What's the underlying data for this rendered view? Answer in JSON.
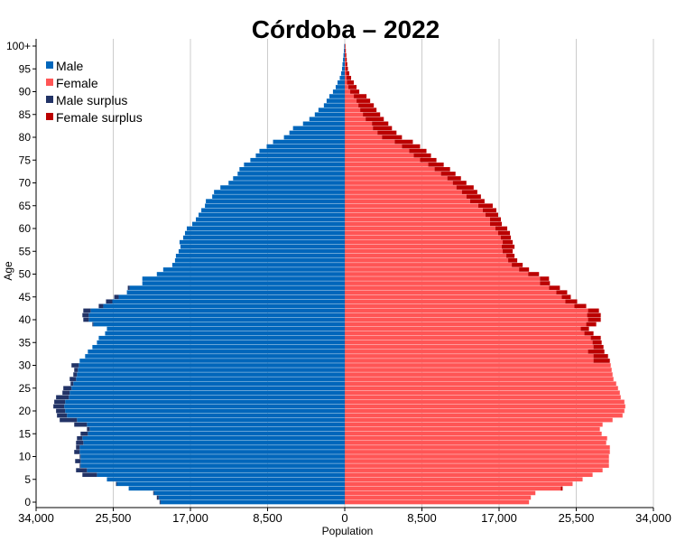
{
  "chart_data": {
    "type": "bar",
    "orientation": "horizontal",
    "title": "Córdoba  –  2022",
    "xlabel": "Population",
    "ylabel": "Age",
    "xlim": [
      -34000,
      34000
    ],
    "x_ticks": [
      -34000,
      -25500,
      -17000,
      -8500,
      0,
      8500,
      17000,
      25500,
      34000
    ],
    "x_tick_labels": [
      "34,000",
      "25,500",
      "17,000",
      "8,500",
      "0",
      "8,500",
      "17,000",
      "25,500",
      "34,000"
    ],
    "ylim": [
      0,
      100
    ],
    "y_ticks": [
      0,
      5,
      10,
      15,
      20,
      25,
      30,
      35,
      40,
      45,
      50,
      55,
      60,
      65,
      70,
      75,
      80,
      85,
      90,
      95,
      100
    ],
    "y_tick_labels": [
      "0",
      "5",
      "10",
      "15",
      "20",
      "25",
      "30",
      "35",
      "40",
      "45",
      "50",
      "55",
      "60",
      "65",
      "70",
      "75",
      "80",
      "85",
      "90",
      "95",
      "100+"
    ],
    "grid": "vertical",
    "legend_position": "top-left",
    "ages": [
      0,
      1,
      2,
      3,
      4,
      5,
      6,
      7,
      8,
      9,
      10,
      11,
      12,
      13,
      14,
      15,
      16,
      17,
      18,
      19,
      20,
      21,
      22,
      23,
      24,
      25,
      26,
      27,
      28,
      29,
      30,
      31,
      32,
      33,
      34,
      35,
      36,
      37,
      38,
      39,
      40,
      41,
      42,
      43,
      44,
      45,
      46,
      47,
      48,
      49,
      50,
      51,
      52,
      53,
      54,
      55,
      56,
      57,
      58,
      59,
      60,
      61,
      62,
      63,
      64,
      65,
      66,
      67,
      68,
      69,
      70,
      71,
      72,
      73,
      74,
      75,
      76,
      77,
      78,
      79,
      80,
      81,
      82,
      83,
      84,
      85,
      86,
      87,
      88,
      89,
      90,
      91,
      92,
      93,
      94,
      95,
      96,
      97,
      98,
      99,
      100
    ],
    "series": [
      {
        "name": "Male",
        "values": [
          20400,
          20700,
          21100,
          23800,
          25200,
          26200,
          28900,
          29600,
          29200,
          29700,
          29200,
          29800,
          29600,
          29600,
          29500,
          29100,
          28400,
          29800,
          31400,
          31700,
          31800,
          32100,
          32000,
          31800,
          31100,
          31000,
          30200,
          30300,
          29900,
          29800,
          30100,
          29200,
          28600,
          28300,
          27800,
          27300,
          27100,
          26400,
          26200,
          27800,
          28800,
          28900,
          28800,
          27100,
          26300,
          25400,
          24000,
          23900,
          22300,
          22300,
          20700,
          20000,
          19000,
          18700,
          18600,
          18300,
          18100,
          18200,
          17800,
          17600,
          17400,
          16800,
          16400,
          16100,
          15800,
          15400,
          15300,
          14600,
          14400,
          13700,
          12800,
          12300,
          11800,
          11600,
          11100,
          10400,
          9800,
          9400,
          8600,
          7900,
          6700,
          6100,
          5700,
          4600,
          3900,
          3300,
          2900,
          2300,
          2000,
          1700,
          1300,
          1000,
          800,
          550,
          400,
          300,
          250,
          190,
          140,
          90,
          60
        ]
      },
      {
        "name": "Female",
        "values": [
          20300,
          20500,
          21000,
          24000,
          25100,
          26200,
          27300,
          28400,
          29100,
          29100,
          29100,
          29200,
          29200,
          28800,
          28900,
          28300,
          28100,
          28400,
          29500,
          30600,
          30800,
          30900,
          30800,
          30400,
          30300,
          30100,
          29900,
          29600,
          29500,
          29400,
          29300,
          29200,
          29000,
          28600,
          28500,
          28300,
          28200,
          27400,
          26900,
          27700,
          28200,
          28200,
          28000,
          26600,
          25600,
          24900,
          24500,
          23700,
          22600,
          22500,
          21400,
          20300,
          19600,
          19000,
          18700,
          18500,
          18700,
          18500,
          18300,
          18200,
          17900,
          17300,
          17200,
          16900,
          16700,
          16300,
          15400,
          15000,
          14600,
          14200,
          13400,
          12800,
          12200,
          11600,
          10900,
          10100,
          9500,
          9000,
          8300,
          7500,
          6300,
          5700,
          5200,
          4800,
          4300,
          3900,
          3500,
          3200,
          2800,
          2400,
          1600,
          1300,
          1000,
          700,
          500,
          350,
          280,
          220,
          170,
          120,
          80
        ]
      },
      {
        "name": "Male surplus",
        "values": [
          100,
          200,
          100,
          0,
          100,
          0,
          1600,
          1200,
          100,
          600,
          100,
          600,
          400,
          800,
          600,
          800,
          300,
          1400,
          1900,
          1100,
          1000,
          1200,
          1200,
          1400,
          800,
          900,
          300,
          700,
          400,
          400,
          800,
          0,
          0,
          0,
          0,
          0,
          0,
          0,
          0,
          100,
          600,
          700,
          800,
          500,
          700,
          500,
          0,
          200,
          0,
          0,
          0,
          0,
          0,
          0,
          0,
          0,
          0,
          0,
          0,
          0,
          0,
          0,
          0,
          0,
          0,
          0,
          0,
          0,
          0,
          0,
          0,
          0,
          0,
          0,
          0,
          0,
          0,
          0,
          0,
          0,
          0,
          0,
          0,
          0,
          0,
          0,
          0,
          0,
          0,
          0,
          0,
          0,
          0,
          0,
          0,
          0,
          0,
          0,
          0,
          0,
          0
        ]
      },
      {
        "name": "Female surplus",
        "values": [
          0,
          0,
          0,
          200,
          0,
          0,
          0,
          0,
          0,
          0,
          0,
          0,
          0,
          0,
          0,
          0,
          0,
          0,
          0,
          0,
          0,
          0,
          0,
          0,
          0,
          0,
          0,
          0,
          0,
          0,
          0,
          1800,
          1600,
          1800,
          1100,
          1000,
          1100,
          1000,
          900,
          1100,
          1400,
          1500,
          1200,
          1300,
          1300,
          1000,
          1200,
          1200,
          1100,
          1000,
          1200,
          1100,
          1200,
          1000,
          900,
          1100,
          1400,
          1100,
          1100,
          1300,
          1300,
          1300,
          1200,
          1400,
          1500,
          1600,
          1600,
          1600,
          1700,
          1900,
          1500,
          1500,
          1600,
          1700,
          1700,
          1800,
          1900,
          1900,
          2000,
          2000,
          2200,
          2100,
          2100,
          1800,
          2000,
          1900,
          1800,
          1700,
          1500,
          1400,
          1000,
          900,
          750,
          500,
          350,
          250,
          200,
          150,
          120,
          80,
          60
        ]
      }
    ],
    "colors": {
      "male": "#0066bb",
      "female": "#ff5555",
      "male_surplus": "#223366",
      "female_surplus": "#bb0000",
      "grid": "#cccccc",
      "axis": "#000000"
    }
  }
}
